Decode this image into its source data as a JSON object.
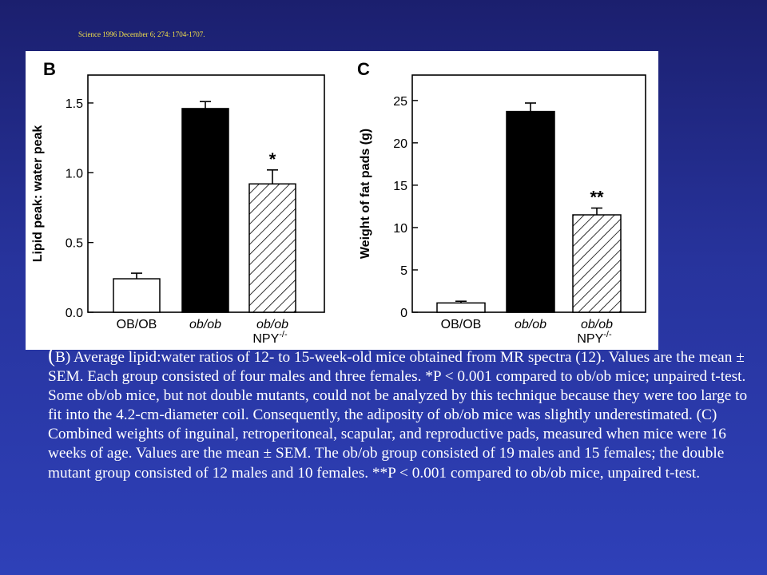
{
  "citation": "Science 1996 December 6; 274: 1704-1707.",
  "chart_data": [
    {
      "type": "bar",
      "panel_label": "B",
      "ylabel": "Lipid peak: water peak",
      "ylim": [
        0.0,
        1.7
      ],
      "yticks": [
        "0.0",
        "0.5",
        "1.0",
        "1.5"
      ],
      "ytick_values": [
        0.0,
        0.5,
        1.0,
        1.5
      ],
      "categories": [
        "OB/OB",
        "ob/ob",
        "ob/ob"
      ],
      "category_sublabel": [
        "",
        "",
        "NPY-/-"
      ],
      "values": [
        0.24,
        1.46,
        0.92
      ],
      "errors": [
        0.04,
        0.05,
        0.1
      ],
      "significance": [
        "",
        "",
        "*"
      ],
      "fills": [
        "white",
        "black",
        "hatched"
      ]
    },
    {
      "type": "bar",
      "panel_label": "C",
      "ylabel": "Weight of fat pads (g)",
      "ylim": [
        0,
        28
      ],
      "yticks": [
        "0",
        "5",
        "10",
        "15",
        "20",
        "25"
      ],
      "ytick_values": [
        0,
        5,
        10,
        15,
        20,
        25
      ],
      "categories": [
        "OB/OB",
        "ob/ob",
        "ob/ob"
      ],
      "category_sublabel": [
        "",
        "",
        "NPY-/-"
      ],
      "values": [
        1.1,
        23.7,
        11.5
      ],
      "errors": [
        0.2,
        1.0,
        0.8
      ],
      "significance": [
        "",
        "",
        "**"
      ],
      "fills": [
        "white",
        "black",
        "hatched"
      ]
    }
  ],
  "caption": {
    "open": "(",
    "text": "B) Average lipid:water ratios of 12- to 15-week-old mice obtained from MR spectra (12). Values are the mean ± SEM. Each group consisted of four males and three females. *P < 0.001 compared to ob/ob mice; unpaired t-test. Some ob/ob mice, but not double mutants, could not be analyzed by this technique because they were too large to fit into the 4.2-cm-diameter coil. Consequently, the adiposity of ob/ob mice was slightly underestimated. (C) Combined weights of inguinal, retroperitoneal, scapular, and reproductive pads, measured when mice were 16 weeks of age. Values are the mean ± SEM. The ob/ob group consisted of 19 males and 15 females; the double mutant group consisted of 12 males and 10 females. **P < 0.001 compared to ob/ob mice, unpaired t-test."
  }
}
